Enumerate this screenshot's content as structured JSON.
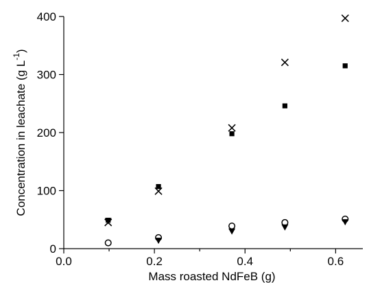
{
  "chart_data": {
    "type": "scatter",
    "xlabel": "Mass roasted NdFeB (g)",
    "ylabel_main": "Concentration in leachate (g L",
    "ylabel_sup": "-1",
    "ylabel_close": ")",
    "xlim": [
      0.0,
      0.66
    ],
    "ylim": [
      0,
      400
    ],
    "x_ticks": [
      0.0,
      0.2,
      0.4,
      0.6
    ],
    "x_tick_labels": [
      "0.0",
      "0.2",
      "0.4",
      "0.6"
    ],
    "y_ticks": [
      0,
      100,
      200,
      300,
      400
    ],
    "y_tick_labels": [
      "0",
      "100",
      "200",
      "300",
      "400"
    ],
    "x_minor_ticks": [
      0.1,
      0.3,
      0.5
    ],
    "grid": false,
    "series": [
      {
        "marker": "cross",
        "color": "#000000",
        "x": [
          0.098,
          0.209,
          0.371,
          0.488,
          0.621
        ],
        "y": [
          45,
          99,
          208,
          321,
          397
        ]
      },
      {
        "marker": "filled-square",
        "color": "#000000",
        "x": [
          0.098,
          0.209,
          0.371,
          0.488,
          0.621
        ],
        "y": [
          49,
          107,
          198,
          246,
          315
        ]
      },
      {
        "marker": "open-circle",
        "color": "#000000",
        "x": [
          0.098,
          0.209,
          0.371,
          0.488,
          0.621
        ],
        "y": [
          10,
          19,
          39,
          45,
          51
        ]
      },
      {
        "marker": "filled-triangle-down",
        "color": "#000000",
        "x": [
          0.098,
          0.209,
          0.371,
          0.488,
          0.621
        ],
        "y": [
          48,
          14,
          30,
          37,
          46
        ]
      }
    ]
  }
}
